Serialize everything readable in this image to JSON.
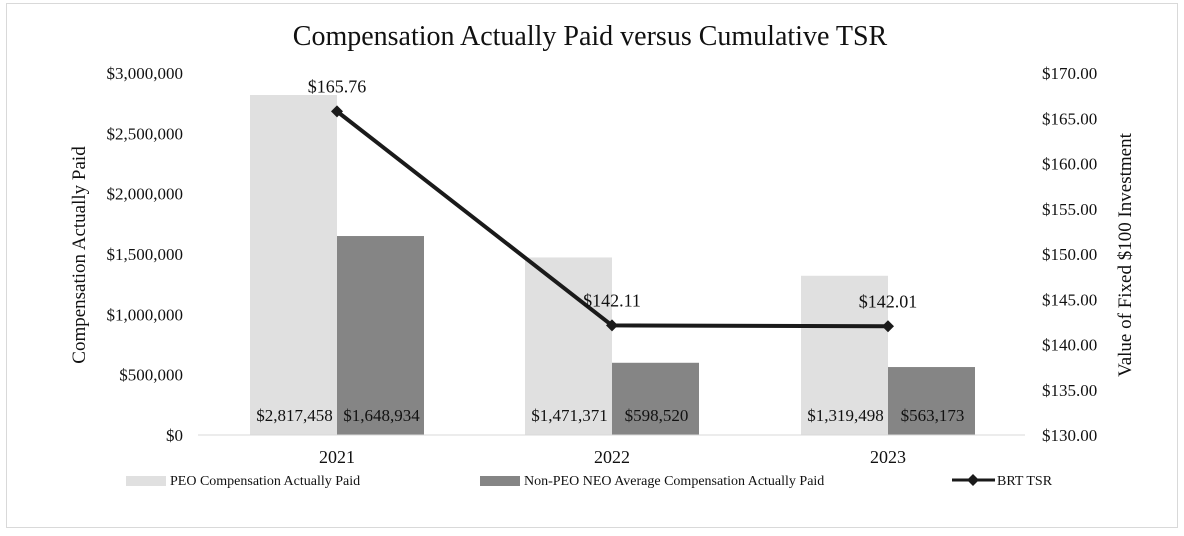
{
  "chart_data": {
    "type": "bar",
    "title": "Compensation Actually Paid versus Cumulative TSR",
    "categories": [
      "2021",
      "2022",
      "2023"
    ],
    "ylabel": "Compensation Actually Paid",
    "y2label": "Value of Fixed $100 Investment",
    "ylim": [
      0,
      3000000
    ],
    "y2lim": [
      130,
      170
    ],
    "yticks": [
      "$0",
      "$500,000",
      "$1,000,000",
      "$1,500,000",
      "$2,000,000",
      "$2,500,000",
      "$3,000,000"
    ],
    "y2ticks": [
      "$130.00",
      "$135.00",
      "$140.00",
      "$145.00",
      "$150.00",
      "$155.00",
      "$160.00",
      "$165.00",
      "$170.00"
    ],
    "series": [
      {
        "name": "PEO Compensation Actually Paid",
        "type": "bar",
        "color": "#e0e0e0",
        "values": [
          2817458,
          1471371,
          1319498
        ],
        "labels": [
          "$2,817,458",
          "$1,471,371",
          "$1,319,498"
        ]
      },
      {
        "name": "Non-PEO NEO Average Compensation Actually Paid",
        "type": "bar",
        "color": "#858585",
        "values": [
          1648934,
          598520,
          563173
        ],
        "labels": [
          "$1,648,934",
          "$598,520",
          "$563,173"
        ]
      },
      {
        "name": "BRT TSR",
        "type": "line",
        "axis": "right",
        "color": "#1a1a1a",
        "values": [
          165.76,
          142.11,
          142.01
        ],
        "labels": [
          "$165.76",
          "$142.11",
          "$142.01"
        ]
      }
    ],
    "grid": false,
    "legend": "bottom"
  }
}
